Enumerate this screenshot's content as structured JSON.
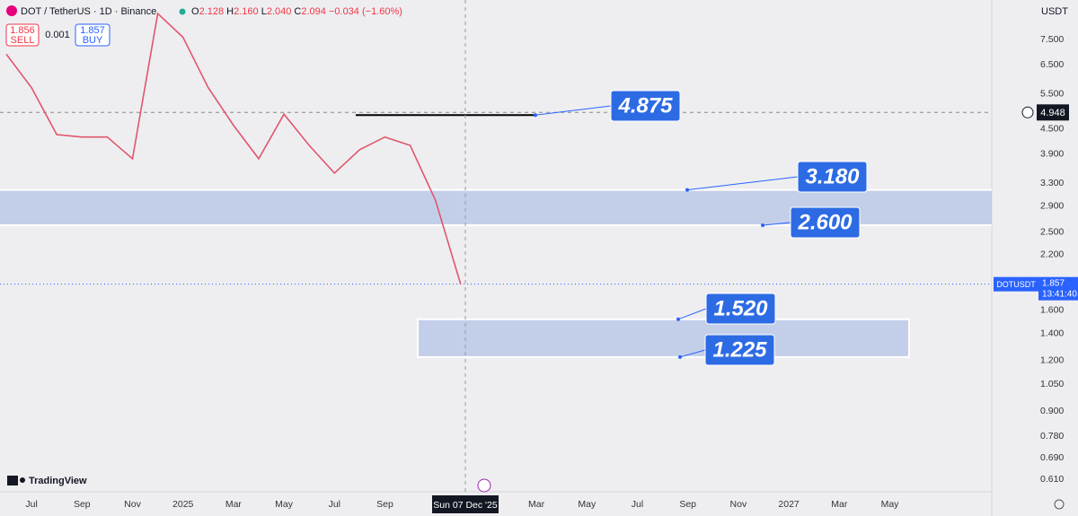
{
  "chart_data": {
    "type": "line",
    "title": "DOT / TetherUS · 1D · Binance",
    "ohlc": {
      "o_label": "O",
      "open": "2.128",
      "h_label": "H",
      "high": "2.160",
      "l_label": "L",
      "low": "2.040",
      "c_label": "C",
      "close": "2.094",
      "change": "−0.034 (−1.60%)"
    },
    "sell": {
      "price": "1.856",
      "label": "SELL"
    },
    "spread": "0.001",
    "buy": {
      "price": "1.857",
      "label": "BUY"
    },
    "currency": "USDT",
    "logo": "TradingView",
    "categories": [
      null,
      "Jul",
      null,
      "Sep",
      null,
      "Nov",
      null,
      "2025",
      null,
      "Mar",
      null,
      "May",
      null,
      "Jul",
      null,
      "Sep",
      null,
      null,
      null,
      null,
      null,
      "Mar",
      null,
      "May",
      null,
      "Jul",
      null,
      "Sep",
      null,
      "Nov",
      null,
      "2027",
      null,
      "Mar",
      null,
      "May"
    ],
    "values": [
      6.9,
      5.7,
      4.36,
      4.3,
      4.3,
      3.8,
      8.7,
      7.6,
      5.7,
      4.6,
      3.8,
      4.9,
      4.1,
      3.5,
      4.0,
      4.3,
      4.1,
      3.0,
      1.857,
      null,
      null,
      null,
      null,
      null,
      null,
      null,
      null,
      null,
      null,
      null,
      null,
      null,
      null,
      null,
      null,
      null
    ],
    "color": "#e0566b",
    "log_scale": true,
    "grid": false,
    "ylim": [
      0.568,
      9.4
    ],
    "yticks": [
      {
        "value": 7.5,
        "label": "7.500"
      },
      {
        "value": 6.5,
        "label": "6.500"
      },
      {
        "value": 5.5,
        "label": "5.500"
      },
      {
        "value": 4.5,
        "label": "4.500"
      },
      {
        "value": 3.9,
        "label": "3.900"
      },
      {
        "value": 3.3,
        "label": "3.300"
      },
      {
        "value": 2.9,
        "label": "2.900"
      },
      {
        "value": 2.5,
        "label": "2.500"
      },
      {
        "value": 2.2,
        "label": "2.200"
      },
      {
        "value": 1.6,
        "label": "1.600"
      },
      {
        "value": 1.4,
        "label": "1.400"
      },
      {
        "value": 1.2,
        "label": "1.200"
      },
      {
        "value": 1.05,
        "label": "1.050"
      },
      {
        "value": 0.9,
        "label": "0.900"
      },
      {
        "value": 0.78,
        "label": "0.780"
      },
      {
        "value": 0.69,
        "label": "0.690"
      },
      {
        "value": 0.61,
        "label": "0.610"
      }
    ],
    "levels": [
      {
        "value": 4.875,
        "label": "4.875"
      },
      {
        "value": 3.18,
        "label": "3.180"
      },
      {
        "value": 2.6,
        "label": "2.600"
      },
      {
        "value": 1.52,
        "label": "1.520"
      },
      {
        "value": 1.225,
        "label": "1.225"
      }
    ],
    "crosshair": {
      "price": {
        "value": 4.948,
        "label": "4.948"
      },
      "date": "Sun 07 Dec '25"
    },
    "last_price": {
      "symbol": "DOTUSDT",
      "value": 1.857,
      "countdown": "13:41:40"
    }
  }
}
